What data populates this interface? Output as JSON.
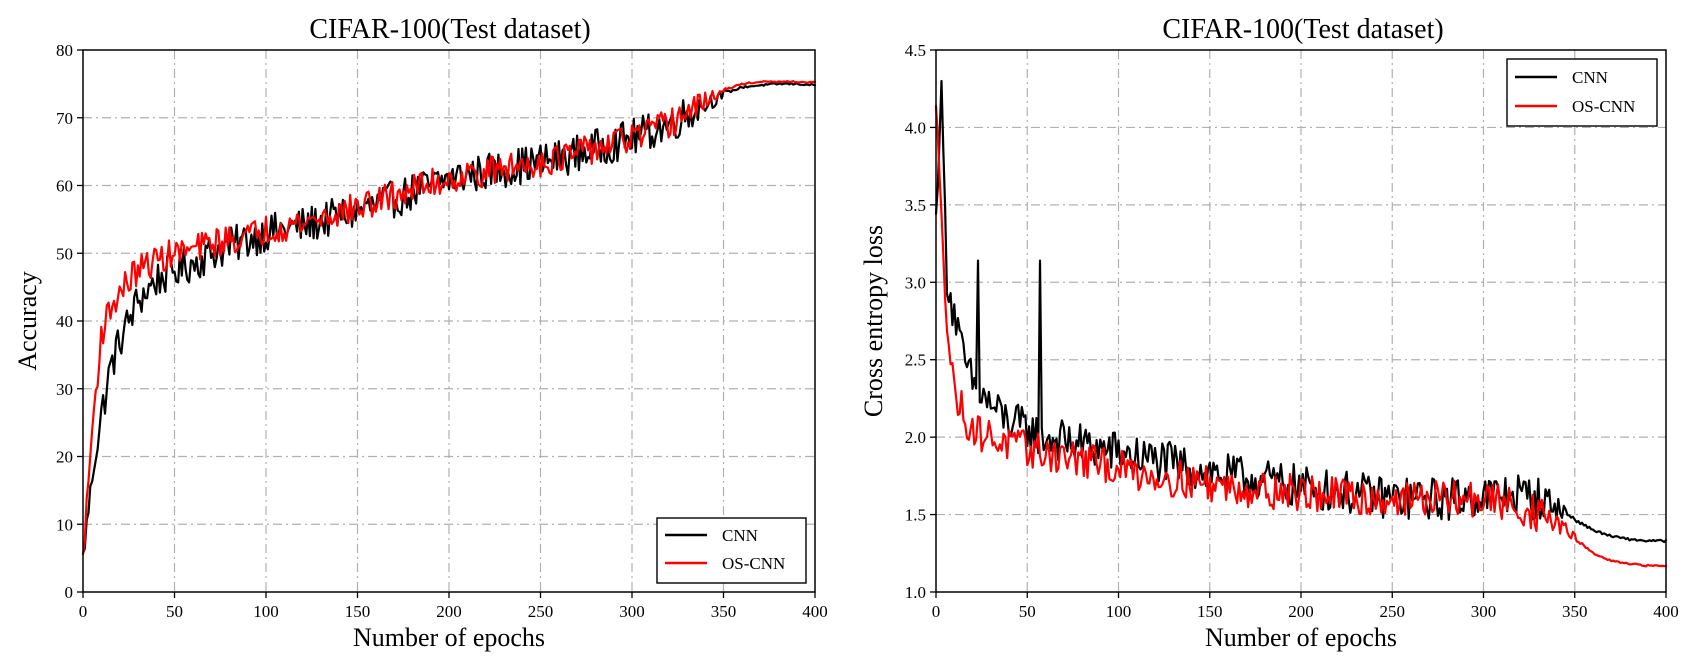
{
  "chart_data": [
    {
      "type": "line",
      "title": "CIFAR-100(Test dataset)",
      "xlabel": "Number of epochs",
      "ylabel": "Accuracy",
      "xlim": [
        0,
        400
      ],
      "ylim": [
        0,
        80
      ],
      "xticks": [
        "0",
        "50",
        "100",
        "150",
        "200",
        "250",
        "300",
        "350",
        "400"
      ],
      "yticks": [
        "0",
        "10",
        "20",
        "30",
        "40",
        "50",
        "60",
        "70",
        "80"
      ],
      "grid": true,
      "legend_position": "bottom-right",
      "series": [
        {
          "name": "CNN",
          "color": "#000000",
          "x": [
            0,
            5,
            10,
            15,
            20,
            25,
            30,
            40,
            50,
            60,
            70,
            80,
            90,
            100,
            120,
            140,
            160,
            180,
            200,
            220,
            240,
            260,
            280,
            300,
            320,
            340,
            350,
            360,
            370,
            380,
            390,
            400
          ],
          "y": [
            5,
            17,
            26,
            33,
            37,
            40,
            43,
            46,
            47.5,
            48.5,
            50,
            51,
            52,
            53,
            54,
            55.5,
            57,
            59,
            61,
            62,
            63,
            64,
            65.5,
            67,
            69,
            72,
            73.5,
            74.5,
            74.8,
            75,
            75,
            74.8
          ],
          "noise": 2.8
        },
        {
          "name": "OS-CNN",
          "color": "#ff0000",
          "x": [
            0,
            5,
            10,
            15,
            20,
            25,
            30,
            40,
            50,
            60,
            70,
            80,
            90,
            100,
            120,
            140,
            160,
            180,
            200,
            220,
            240,
            260,
            280,
            300,
            320,
            340,
            350,
            360,
            370,
            380,
            390,
            400
          ],
          "y": [
            5,
            24,
            38,
            42,
            44,
            46,
            47.5,
            49,
            50,
            50.5,
            51.5,
            52,
            52.5,
            53.5,
            54.5,
            56,
            57.5,
            59.5,
            61,
            62,
            63,
            64,
            65.5,
            67,
            69,
            72.5,
            74,
            75,
            75.3,
            75.3,
            75.3,
            75.2
          ],
          "noise": 2.2
        }
      ]
    },
    {
      "type": "line",
      "title": "CIFAR-100(Test dataset)",
      "xlabel": "Number of epochs",
      "ylabel": "Cross entropy loss",
      "xlim": [
        0,
        400
      ],
      "ylim": [
        1.0,
        4.5
      ],
      "xticks": [
        "0",
        "50",
        "100",
        "150",
        "200",
        "250",
        "300",
        "350",
        "400"
      ],
      "yticks": [
        "1.0",
        "1.5",
        "2.0",
        "2.5",
        "3.0",
        "3.5",
        "4.0",
        "4.5"
      ],
      "grid": true,
      "legend_position": "top-right",
      "series": [
        {
          "name": "CNN",
          "color": "#000000",
          "x": [
            0,
            3,
            6,
            10,
            15,
            20,
            30,
            40,
            50,
            60,
            80,
            100,
            120,
            140,
            160,
            180,
            200,
            220,
            240,
            260,
            280,
            300,
            320,
            330,
            340,
            350,
            360,
            370,
            380,
            390,
            400
          ],
          "y": [
            3.4,
            4.3,
            3.0,
            2.8,
            2.5,
            2.35,
            2.2,
            2.1,
            2.05,
            2.0,
            1.95,
            1.9,
            1.85,
            1.8,
            1.75,
            1.72,
            1.68,
            1.65,
            1.62,
            1.6,
            1.6,
            1.62,
            1.63,
            1.6,
            1.55,
            1.47,
            1.4,
            1.36,
            1.34,
            1.33,
            1.33
          ],
          "noise": 0.14,
          "spikes": [
            [
              3,
              4.3
            ],
            [
              23,
              3.14
            ],
            [
              57,
              3.14
            ]
          ]
        },
        {
          "name": "OS-CNN",
          "color": "#ff0000",
          "x": [
            0,
            3,
            6,
            10,
            15,
            20,
            30,
            40,
            50,
            60,
            80,
            100,
            120,
            140,
            160,
            180,
            200,
            220,
            240,
            260,
            280,
            300,
            320,
            330,
            340,
            350,
            360,
            370,
            380,
            390,
            400
          ],
          "y": [
            4.1,
            3.5,
            2.7,
            2.3,
            2.15,
            2.05,
            2.0,
            1.95,
            1.92,
            1.9,
            1.85,
            1.8,
            1.75,
            1.72,
            1.68,
            1.66,
            1.64,
            1.62,
            1.6,
            1.6,
            1.6,
            1.6,
            1.55,
            1.5,
            1.45,
            1.35,
            1.25,
            1.2,
            1.18,
            1.17,
            1.17
          ],
          "noise": 0.12,
          "spikes": []
        }
      ]
    }
  ]
}
